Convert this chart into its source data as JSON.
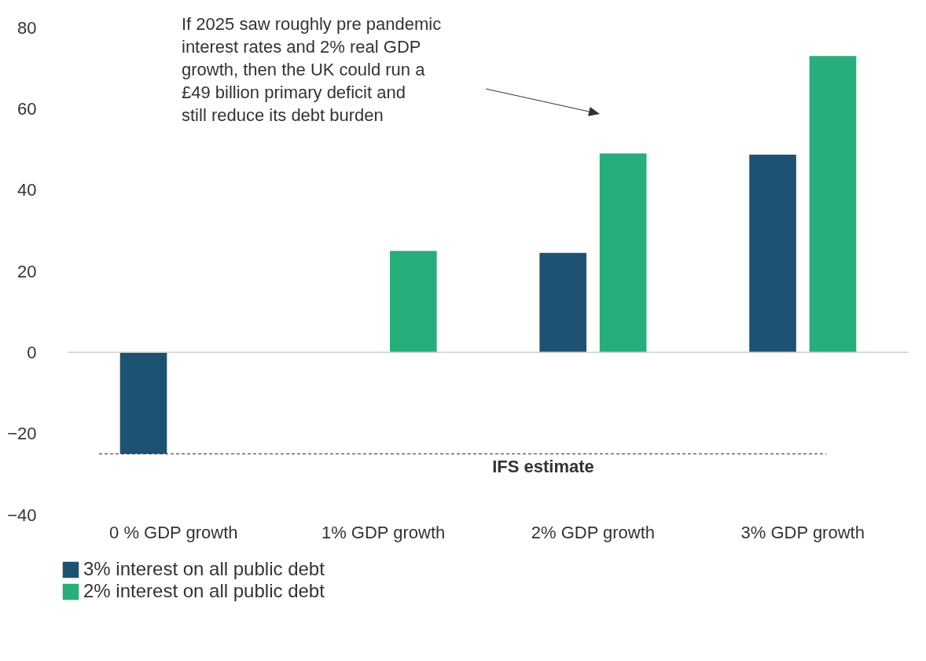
{
  "chart_data": {
    "type": "bar",
    "categories": [
      "0 % GDP growth",
      "1% GDP growth",
      "2% GDP growth",
      "3% GDP growth"
    ],
    "series": [
      {
        "name": "3% interest on all public debt",
        "color": "#1d5273",
        "values": [
          -25,
          null,
          24.5,
          48.7
        ]
      },
      {
        "name": "2% interest on all public debt",
        "color": "#27ae7a",
        "values": [
          null,
          25,
          49,
          73
        ]
      }
    ],
    "ylim": [
      -40,
      80
    ],
    "yticks": [
      -40,
      -20,
      0,
      20,
      40,
      60,
      80
    ],
    "legend": "bottom left",
    "ref_lines": [
      {
        "axis": "y",
        "value": -25,
        "label": "IFS estimate",
        "line_style": "dashed"
      }
    ],
    "annotations": [
      "If 2025 saw roughly pre pandemic interest rates and 2% real GDP growth, then the UK could run a £49 billion primary deficit and still reduce its debt burden"
    ]
  }
}
